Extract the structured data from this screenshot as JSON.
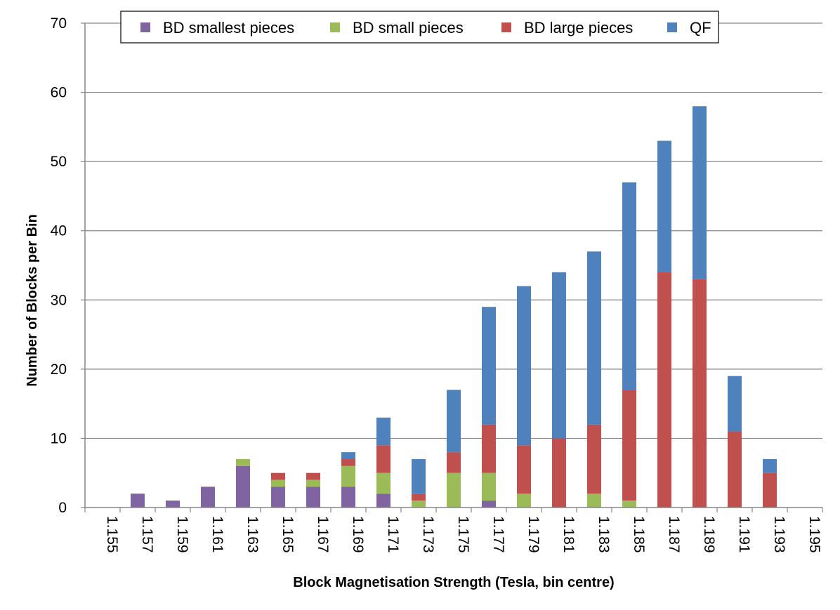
{
  "chart_data": {
    "type": "bar",
    "stacked": true,
    "title": "",
    "xlabel": "Block Magnetisation Strength (Tesla, bin centre)",
    "ylabel": "Number of Blocks per Bin",
    "ylim": [
      0,
      70
    ],
    "yticks": [
      0,
      10,
      20,
      30,
      40,
      50,
      60,
      70
    ],
    "grid": true,
    "legend_position": "top",
    "categories": [
      "1.155",
      "1.157",
      "1.159",
      "1.161",
      "1.163",
      "1.165",
      "1.167",
      "1.169",
      "1.171",
      "1.173",
      "1.175",
      "1.177",
      "1.179",
      "1.181",
      "1.183",
      "1.185",
      "1.187",
      "1.189",
      "1.191",
      "1.193",
      "1.195"
    ],
    "series": [
      {
        "name": "BD smallest pieces",
        "color": "#8064A2",
        "values": [
          0,
          2,
          1,
          3,
          6,
          3,
          3,
          3,
          2,
          0,
          0,
          1,
          0,
          0,
          0,
          0,
          0,
          0,
          0,
          0,
          0
        ]
      },
      {
        "name": "BD small pieces",
        "color": "#9BBB59",
        "values": [
          0,
          0,
          0,
          0,
          1,
          1,
          1,
          3,
          3,
          1,
          5,
          4,
          2,
          0,
          2,
          1,
          0,
          0,
          0,
          0,
          0
        ]
      },
      {
        "name": "BD large pieces",
        "color": "#C0504D",
        "values": [
          0,
          0,
          0,
          0,
          0,
          1,
          1,
          1,
          4,
          1,
          3,
          7,
          7,
          10,
          10,
          16,
          34,
          33,
          11,
          5,
          0
        ]
      },
      {
        "name": "QF",
        "color": "#4F81BD",
        "values": [
          0,
          0,
          0,
          0,
          0,
          0,
          0,
          1,
          4,
          5,
          9,
          17,
          23,
          24,
          25,
          30,
          19,
          25,
          8,
          2,
          0
        ]
      }
    ]
  }
}
